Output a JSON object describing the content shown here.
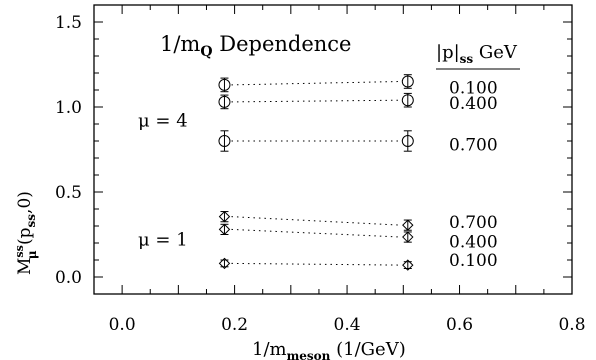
{
  "chart_data": {
    "type": "scatter",
    "title": "1/m_Q Dependence",
    "title_main": "1/m",
    "title_sub": "Q",
    "title_rest": " Dependence",
    "xlabel_main": "1/m",
    "xlabel_sub": "meson",
    "xlabel_rest": " (1/GeV)",
    "ylabel_main": "M",
    "ylabel_sup": "ss",
    "ylabel_sub": "μ",
    "ylabel_rest": " (p",
    "ylabel_rest_sub": "ss",
    "ylabel_tail": ",0)",
    "xlim": [
      -0.05,
      0.8
    ],
    "ylim": [
      -0.1,
      1.6
    ],
    "xticks": [
      {
        "v": 0.0,
        "label": "0.0"
      },
      {
        "v": 0.2,
        "label": "0.2"
      },
      {
        "v": 0.4,
        "label": "0.4"
      },
      {
        "v": 0.6,
        "label": "0.6"
      },
      {
        "v": 0.8,
        "label": "0.8"
      }
    ],
    "yticks": [
      {
        "v": 0.0,
        "label": "0.0"
      },
      {
        "v": 0.5,
        "label": "0.5"
      },
      {
        "v": 1.0,
        "label": "1.0"
      },
      {
        "v": 1.5,
        "label": "1.5"
      }
    ],
    "legend_header_main": "|p|",
    "legend_header_sub": "ss",
    "legend_header_rest": " GeV",
    "groups": [
      {
        "label": "μ = 4",
        "label_y": 0.92,
        "marker": "circle",
        "series": [
          {
            "name": "0.100",
            "x": [
              0.182,
              0.508
            ],
            "y": [
              1.13,
              1.15
            ],
            "err": [
              0.04,
              0.04
            ]
          },
          {
            "name": "0.400",
            "x": [
              0.182,
              0.508
            ],
            "y": [
              1.03,
              1.04
            ],
            "err": [
              0.04,
              0.04
            ]
          },
          {
            "name": "0.700",
            "x": [
              0.182,
              0.508
            ],
            "y": [
              0.8,
              0.8
            ],
            "err": [
              0.06,
              0.06
            ]
          }
        ]
      },
      {
        "label": "μ = 1",
        "label_y": 0.22,
        "marker": "diamond",
        "series": [
          {
            "name": "0.700",
            "x": [
              0.182,
              0.508
            ],
            "y": [
              0.355,
              0.305
            ],
            "err": [
              0.03,
              0.03
            ]
          },
          {
            "name": "0.400",
            "x": [
              0.182,
              0.508
            ],
            "y": [
              0.28,
              0.235
            ],
            "err": [
              0.03,
              0.03
            ]
          },
          {
            "name": "0.100",
            "x": [
              0.182,
              0.508
            ],
            "y": [
              0.08,
              0.07
            ],
            "err": [
              0.02,
              0.02
            ]
          }
        ]
      }
    ],
    "right_labels": [
      {
        "text": "0.100",
        "y": 1.115
      },
      {
        "text": "0.400",
        "y": 1.025
      },
      {
        "text": "0.700",
        "y": 0.78
      },
      {
        "text": "0.700",
        "y": 0.325
      },
      {
        "text": "0.400",
        "y": 0.21
      },
      {
        "text": "0.100",
        "y": 0.1
      }
    ]
  }
}
